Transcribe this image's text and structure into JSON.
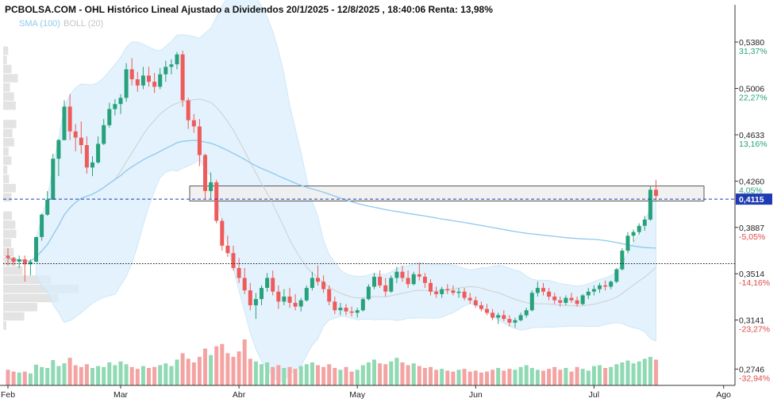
{
  "chart_data": {
    "type": "candlestick",
    "title": "PCBOLSA.COM - OHL Histórico Lineal Ajustado a Dividendos 20/1/2025 - 12/8/2025 , 18:40:06 Renta: 13,98%",
    "legend": [
      {
        "label": "SMA (100)",
        "color": "#8ec9ee"
      },
      {
        "label": "BOLL (20)",
        "color": "#c4c4c4"
      }
    ],
    "y_range": [
      0.2615,
      0.5565
    ],
    "y_ticks": [
      {
        "price": "0,5380",
        "pct": "31,37%",
        "value": 0.538
      },
      {
        "price": "0,5006",
        "pct": "22,27%",
        "value": 0.5006
      },
      {
        "price": "0,4633",
        "pct": "13,16%",
        "value": 0.4633
      },
      {
        "price": "0,4260",
        "pct": "4,05%",
        "value": 0.426
      },
      {
        "price": "0,3887",
        "pct": "-5,05%",
        "value": 0.3887
      },
      {
        "price": "0,3514",
        "pct": "-14,16%",
        "value": 0.3514
      },
      {
        "price": "0,3141",
        "pct": "-23,27%",
        "value": 0.3141
      },
      {
        "price": "0,2746",
        "pct": "-32,94%",
        "value": 0.2746
      }
    ],
    "current_price": {
      "label": "0,4115",
      "value": 0.4115
    },
    "reference_line": 0.3595,
    "resistance_zone": [
      0.41,
      0.422
    ],
    "x_labels": [
      {
        "label": "Feb",
        "index": 0
      },
      {
        "label": "Mar",
        "index": 20
      },
      {
        "label": "Abr",
        "index": 41
      },
      {
        "label": "May",
        "index": 62
      },
      {
        "label": "Jun",
        "index": 83
      },
      {
        "label": "Jul",
        "index": 104
      },
      {
        "label": "Ago",
        "index": 127
      }
    ],
    "ohlc": [
      [
        0.366,
        0.372,
        0.358,
        0.364
      ],
      [
        0.364,
        0.365,
        0.358,
        0.361
      ],
      [
        0.361,
        0.366,
        0.356,
        0.363
      ],
      [
        0.363,
        0.366,
        0.345,
        0.359
      ],
      [
        0.359,
        0.363,
        0.35,
        0.361
      ],
      [
        0.361,
        0.381,
        0.361,
        0.381
      ],
      [
        0.381,
        0.4,
        0.378,
        0.399
      ],
      [
        0.399,
        0.418,
        0.398,
        0.411
      ],
      [
        0.411,
        0.448,
        0.411,
        0.444
      ],
      [
        0.444,
        0.46,
        0.43,
        0.459
      ],
      [
        0.459,
        0.491,
        0.459,
        0.486
      ],
      [
        0.486,
        0.496,
        0.459,
        0.466
      ],
      [
        0.466,
        0.472,
        0.45,
        0.461
      ],
      [
        0.461,
        0.474,
        0.448,
        0.455
      ],
      [
        0.455,
        0.462,
        0.432,
        0.437
      ],
      [
        0.437,
        0.446,
        0.43,
        0.441
      ],
      [
        0.441,
        0.462,
        0.44,
        0.456
      ],
      [
        0.456,
        0.476,
        0.455,
        0.471
      ],
      [
        0.471,
        0.489,
        0.469,
        0.484
      ],
      [
        0.484,
        0.492,
        0.479,
        0.488
      ],
      [
        0.488,
        0.496,
        0.48,
        0.493
      ],
      [
        0.493,
        0.521,
        0.49,
        0.516
      ],
      [
        0.516,
        0.525,
        0.503,
        0.508
      ],
      [
        0.508,
        0.514,
        0.498,
        0.503
      ],
      [
        0.503,
        0.518,
        0.5,
        0.511
      ],
      [
        0.511,
        0.518,
        0.502,
        0.506
      ],
      [
        0.506,
        0.513,
        0.497,
        0.502
      ],
      [
        0.502,
        0.517,
        0.5,
        0.512
      ],
      [
        0.512,
        0.523,
        0.506,
        0.518
      ],
      [
        0.518,
        0.524,
        0.512,
        0.52
      ],
      [
        0.52,
        0.53,
        0.516,
        0.528
      ],
      [
        0.528,
        0.531,
        0.486,
        0.491
      ],
      [
        0.491,
        0.493,
        0.468,
        0.475
      ],
      [
        0.475,
        0.48,
        0.465,
        0.47
      ],
      [
        0.47,
        0.476,
        0.438,
        0.447
      ],
      [
        0.447,
        0.448,
        0.412,
        0.418
      ],
      [
        0.418,
        0.433,
        0.412,
        0.425
      ],
      [
        0.425,
        0.427,
        0.392,
        0.394
      ],
      [
        0.394,
        0.396,
        0.37,
        0.374
      ],
      [
        0.374,
        0.382,
        0.365,
        0.368
      ],
      [
        0.368,
        0.374,
        0.354,
        0.356
      ],
      [
        0.356,
        0.364,
        0.344,
        0.348
      ],
      [
        0.348,
        0.356,
        0.335,
        0.338
      ],
      [
        0.338,
        0.344,
        0.322,
        0.326
      ],
      [
        0.326,
        0.336,
        0.315,
        0.331
      ],
      [
        0.331,
        0.342,
        0.326,
        0.34
      ],
      [
        0.34,
        0.352,
        0.337,
        0.348
      ],
      [
        0.348,
        0.354,
        0.334,
        0.337
      ],
      [
        0.337,
        0.342,
        0.323,
        0.329
      ],
      [
        0.329,
        0.339,
        0.326,
        0.333
      ],
      [
        0.333,
        0.34,
        0.324,
        0.328
      ],
      [
        0.328,
        0.335,
        0.322,
        0.325
      ],
      [
        0.325,
        0.332,
        0.321,
        0.33
      ],
      [
        0.33,
        0.342,
        0.329,
        0.34
      ],
      [
        0.34,
        0.353,
        0.338,
        0.348
      ],
      [
        0.348,
        0.358,
        0.342,
        0.345
      ],
      [
        0.345,
        0.35,
        0.336,
        0.339
      ],
      [
        0.339,
        0.342,
        0.326,
        0.329
      ],
      [
        0.329,
        0.333,
        0.319,
        0.322
      ],
      [
        0.322,
        0.328,
        0.318,
        0.324
      ],
      [
        0.324,
        0.327,
        0.318,
        0.321
      ],
      [
        0.321,
        0.325,
        0.317,
        0.32
      ],
      [
        0.32,
        0.324,
        0.316,
        0.322
      ],
      [
        0.322,
        0.332,
        0.321,
        0.331
      ],
      [
        0.331,
        0.343,
        0.33,
        0.341
      ],
      [
        0.341,
        0.352,
        0.339,
        0.349
      ],
      [
        0.349,
        0.354,
        0.34,
        0.342
      ],
      [
        0.342,
        0.348,
        0.333,
        0.337
      ],
      [
        0.337,
        0.35,
        0.336,
        0.348
      ],
      [
        0.348,
        0.357,
        0.344,
        0.353
      ],
      [
        0.353,
        0.358,
        0.345,
        0.348
      ],
      [
        0.348,
        0.354,
        0.34,
        0.343
      ],
      [
        0.343,
        0.353,
        0.342,
        0.351
      ],
      [
        0.351,
        0.36,
        0.346,
        0.349
      ],
      [
        0.349,
        0.352,
        0.34,
        0.344
      ],
      [
        0.344,
        0.347,
        0.334,
        0.337
      ],
      [
        0.337,
        0.341,
        0.332,
        0.335
      ],
      [
        0.335,
        0.341,
        0.332,
        0.339
      ],
      [
        0.339,
        0.343,
        0.335,
        0.338
      ],
      [
        0.338,
        0.342,
        0.334,
        0.336
      ],
      [
        0.336,
        0.34,
        0.332,
        0.337
      ],
      [
        0.337,
        0.34,
        0.33,
        0.332
      ],
      [
        0.332,
        0.336,
        0.327,
        0.33
      ],
      [
        0.33,
        0.333,
        0.324,
        0.326
      ],
      [
        0.326,
        0.329,
        0.321,
        0.323
      ],
      [
        0.323,
        0.327,
        0.318,
        0.32
      ],
      [
        0.32,
        0.323,
        0.314,
        0.316
      ],
      [
        0.316,
        0.32,
        0.311,
        0.318
      ],
      [
        0.318,
        0.322,
        0.313,
        0.315
      ],
      [
        0.315,
        0.318,
        0.309,
        0.312
      ],
      [
        0.312,
        0.316,
        0.308,
        0.314
      ],
      [
        0.314,
        0.32,
        0.313,
        0.318
      ],
      [
        0.318,
        0.324,
        0.316,
        0.322
      ],
      [
        0.322,
        0.338,
        0.321,
        0.336
      ],
      [
        0.336,
        0.345,
        0.333,
        0.34
      ],
      [
        0.34,
        0.344,
        0.334,
        0.337
      ],
      [
        0.337,
        0.34,
        0.33,
        0.333
      ],
      [
        0.333,
        0.336,
        0.327,
        0.33
      ],
      [
        0.33,
        0.333,
        0.325,
        0.328
      ],
      [
        0.328,
        0.334,
        0.326,
        0.332
      ],
      [
        0.332,
        0.336,
        0.328,
        0.33
      ],
      [
        0.33,
        0.333,
        0.325,
        0.327
      ],
      [
        0.327,
        0.335,
        0.326,
        0.334
      ],
      [
        0.334,
        0.34,
        0.331,
        0.337
      ],
      [
        0.337,
        0.342,
        0.334,
        0.339
      ],
      [
        0.339,
        0.344,
        0.336,
        0.342
      ],
      [
        0.342,
        0.346,
        0.338,
        0.341
      ],
      [
        0.341,
        0.346,
        0.339,
        0.345
      ],
      [
        0.345,
        0.356,
        0.344,
        0.355
      ],
      [
        0.355,
        0.372,
        0.354,
        0.37
      ],
      [
        0.37,
        0.385,
        0.368,
        0.382
      ],
      [
        0.382,
        0.387,
        0.377,
        0.385
      ],
      [
        0.385,
        0.392,
        0.383,
        0.39
      ],
      [
        0.39,
        0.398,
        0.386,
        0.395
      ],
      [
        0.395,
        0.422,
        0.394,
        0.419
      ],
      [
        0.419,
        0.427,
        0.41,
        0.414
      ]
    ],
    "volume": [
      0.34,
      0.3,
      0.28,
      0.3,
      0.26,
      0.45,
      0.4,
      0.38,
      0.55,
      0.42,
      0.48,
      0.6,
      0.44,
      0.4,
      0.46,
      0.38,
      0.42,
      0.4,
      0.5,
      0.44,
      0.52,
      0.46,
      0.4,
      0.36,
      0.42,
      0.38,
      0.4,
      0.44,
      0.48,
      0.42,
      0.56,
      0.7,
      0.58,
      0.5,
      0.62,
      0.8,
      0.66,
      0.85,
      0.9,
      0.7,
      0.62,
      0.74,
      1.0,
      0.58,
      0.52,
      0.46,
      0.5,
      0.4,
      0.44,
      0.38,
      0.4,
      0.36,
      0.42,
      0.46,
      0.5,
      0.44,
      0.4,
      0.46,
      0.38,
      0.34,
      0.4,
      0.3,
      0.34,
      0.44,
      0.5,
      0.56,
      0.48,
      0.46,
      0.52,
      0.6,
      0.5,
      0.44,
      0.48,
      0.42,
      0.38,
      0.4,
      0.34,
      0.36,
      0.32,
      0.3,
      0.34,
      0.36,
      0.3,
      0.32,
      0.28,
      0.3,
      0.34,
      0.38,
      0.32,
      0.36,
      0.34,
      0.4,
      0.44,
      0.38,
      0.34,
      0.32,
      0.36,
      0.4,
      0.34,
      0.38,
      0.3,
      0.4,
      0.36,
      0.32,
      0.42,
      0.44,
      0.38,
      0.4,
      0.46,
      0.5,
      0.54,
      0.48,
      0.52,
      0.58,
      0.62,
      0.56
    ]
  }
}
